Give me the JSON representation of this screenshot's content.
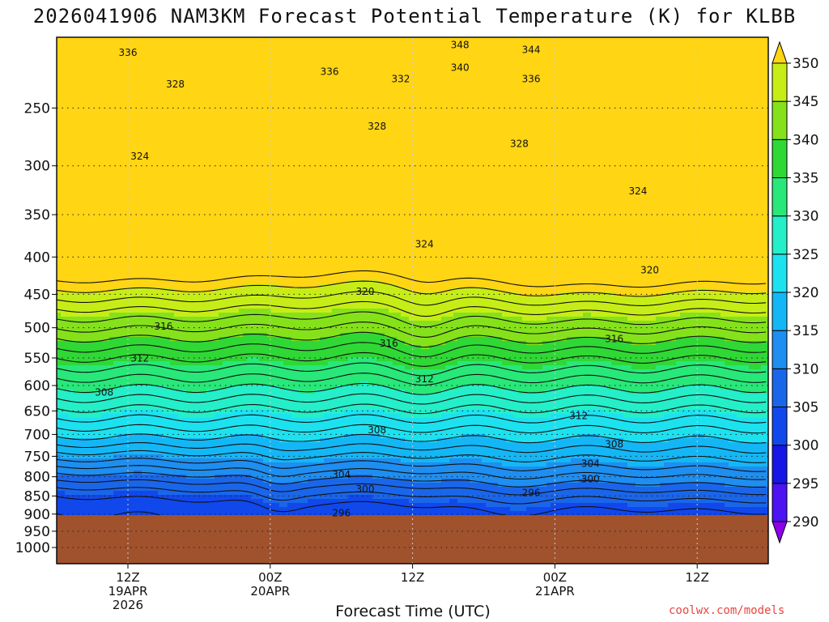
{
  "chart_data": {
    "type": "heatmap",
    "title": "2026041906 NAM3KM Forecast Potential Temperature (K) for KLBB",
    "xlabel": "Forecast Time (UTC)",
    "ylabel": "",
    "credit": "coolwx.com/models",
    "y_axis": {
      "scale": "log",
      "range": [
        1000,
        200
      ],
      "ticks": [
        250,
        300,
        350,
        400,
        450,
        500,
        550,
        600,
        650,
        700,
        750,
        800,
        850,
        900,
        950,
        1000
      ],
      "tick_labels": [
        "250",
        "300",
        "350",
        "400",
        "450",
        "500",
        "550",
        "600",
        "650",
        "700",
        "750",
        "800",
        "850",
        "900",
        "950",
        "1000"
      ]
    },
    "x_axis": {
      "range": [
        "2026-04-19 07Z",
        "2026-04-21 19Z"
      ],
      "ticks": [
        {
          "time": "2026-04-19 12Z",
          "line1": "12Z",
          "line2": "19APR",
          "line3": "2026"
        },
        {
          "time": "2026-04-20 00Z",
          "line1": "00Z",
          "line2": "20APR",
          "line3": ""
        },
        {
          "time": "2026-04-20 12Z",
          "line1": "12Z",
          "line2": "",
          "line3": ""
        },
        {
          "time": "2026-04-21 00Z",
          "line1": "00Z",
          "line2": "21APR",
          "line3": ""
        },
        {
          "time": "2026-04-21 12Z",
          "line1": "12Z",
          "line2": "",
          "line3": ""
        }
      ]
    },
    "grid": true,
    "terrain": {
      "surface_pressure": 903,
      "color": "#a0522d"
    },
    "colorbar": {
      "placement": "right",
      "labels": [
        "290",
        "295",
        "300",
        "305",
        "310",
        "315",
        "320",
        "325",
        "330",
        "335",
        "340",
        "345",
        "350"
      ],
      "colors": [
        "#8b00e8",
        "#4d13f2",
        "#1616e6",
        "#1148ec",
        "#1a66ea",
        "#1e8ef0",
        "#14b7f6",
        "#1ce2f0",
        "#24efc8",
        "#27e879",
        "#2fd835",
        "#85e21a",
        "#c7ed16",
        "#ffd514"
      ]
    },
    "contour_labels": [
      {
        "value": "348",
        "time": "2026-04-20 16Z",
        "pressure": 205
      },
      {
        "value": "344",
        "time": "2026-04-20 22Z",
        "pressure": 208
      },
      {
        "value": "336",
        "time": "2026-04-19 12Z",
        "pressure": 210
      },
      {
        "value": "340",
        "time": "2026-04-20 16Z",
        "pressure": 220
      },
      {
        "value": "336",
        "time": "2026-04-20 05Z",
        "pressure": 223
      },
      {
        "value": "332",
        "time": "2026-04-20 11Z",
        "pressure": 228
      },
      {
        "value": "336",
        "time": "2026-04-20 22Z",
        "pressure": 228
      },
      {
        "value": "328",
        "time": "2026-04-19 16Z",
        "pressure": 232
      },
      {
        "value": "328",
        "time": "2026-04-20 09Z",
        "pressure": 265
      },
      {
        "value": "328",
        "time": "2026-04-20 21Z",
        "pressure": 280
      },
      {
        "value": "324",
        "time": "2026-04-19 13Z",
        "pressure": 291
      },
      {
        "value": "324",
        "time": "2026-04-21 07Z",
        "pressure": 325
      },
      {
        "value": "324",
        "time": "2026-04-20 13Z",
        "pressure": 384
      },
      {
        "value": "320",
        "time": "2026-04-21 08Z",
        "pressure": 417
      },
      {
        "value": "320",
        "time": "2026-04-20 08Z",
        "pressure": 446
      },
      {
        "value": "316",
        "time": "2026-04-19 15Z",
        "pressure": 498
      },
      {
        "value": "316",
        "time": "2026-04-20 10Z",
        "pressure": 525
      },
      {
        "value": "316",
        "time": "2026-04-21 05Z",
        "pressure": 518
      },
      {
        "value": "312",
        "time": "2026-04-19 13Z",
        "pressure": 551
      },
      {
        "value": "312",
        "time": "2026-04-20 13Z",
        "pressure": 588
      },
      {
        "value": "312",
        "time": "2026-04-21 02Z",
        "pressure": 660
      },
      {
        "value": "308",
        "time": "2026-04-19 10Z",
        "pressure": 613
      },
      {
        "value": "308",
        "time": "2026-04-20 09Z",
        "pressure": 690
      },
      {
        "value": "308",
        "time": "2026-04-21 05Z",
        "pressure": 722
      },
      {
        "value": "304",
        "time": "2026-04-21 03Z",
        "pressure": 768
      },
      {
        "value": "304",
        "time": "2026-04-20 06Z",
        "pressure": 795
      },
      {
        "value": "300",
        "time": "2026-04-21 03Z",
        "pressure": 806
      },
      {
        "value": "300",
        "time": "2026-04-20 08Z",
        "pressure": 832
      },
      {
        "value": "296",
        "time": "2026-04-20 22Z",
        "pressure": 842
      },
      {
        "value": "296",
        "time": "2026-04-20 06Z",
        "pressure": 897
      }
    ]
  }
}
